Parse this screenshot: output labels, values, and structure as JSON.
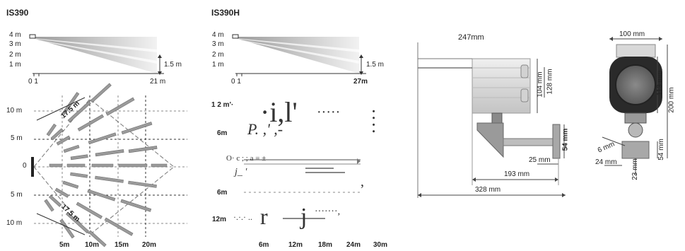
{
  "models": [
    {
      "title": "IS390",
      "side_height_labels": [
        "4 m",
        "3 m",
        "2 m",
        "1 m"
      ],
      "side_range_start": "0 1",
      "side_range_end": "21 m",
      "mount_height": "1.5 m",
      "top_y_labels": [
        "10 m",
        "5 m",
        "0",
        "5 m",
        "10 m"
      ],
      "top_x_labels": [
        "5m",
        "10m",
        "15m",
        "20m"
      ],
      "diag_labels": [
        "17.5 m",
        "17.5 m"
      ]
    },
    {
      "title": "IS390H",
      "side_height_labels": [
        "4 m",
        "3 m",
        "2 m",
        "1 m"
      ],
      "side_range_start": "0 1",
      "side_range_end": "27m",
      "mount_height": "1.5 m",
      "top_y_labels": [
        "1 2 m'·",
        "6m",
        "6m",
        "12m"
      ],
      "top_x_labels": [
        "6m",
        "12m",
        "18m",
        "24m",
        "30m"
      ]
    }
  ],
  "dimensions_side": {
    "length_top": "247mm",
    "height_inner": "104 mm",
    "height_outer": "128 mm",
    "bracket_height": "54 mm",
    "offset": "25 mm",
    "bracket_depth": "193 mm",
    "total_length": "328 mm"
  },
  "dimensions_front": {
    "width": "100 mm",
    "height_inner": "113 mm",
    "height_outer": "200 mm",
    "bracket_height": "54 mm",
    "hole": "6 mm",
    "base_width": "24 mm",
    "base_height": "23 mm"
  }
}
